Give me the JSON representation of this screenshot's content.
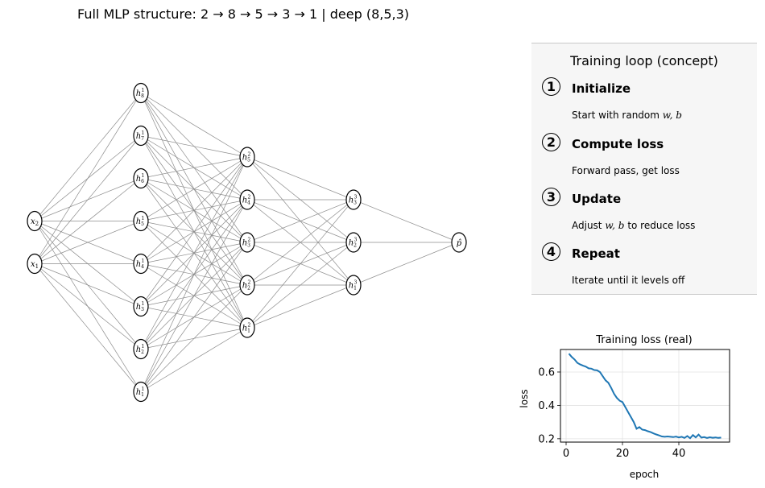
{
  "title": "Full MLP structure: 2 → 8 → 5 → 3 → 1 | deep (8,5,3)",
  "network": {
    "layer_sizes": [
      2,
      8,
      5,
      3,
      1
    ],
    "input_labels": [
      "x",
      "x"
    ],
    "input_subscripts": [
      "2",
      "1"
    ],
    "edge_color": "#8c8c8c",
    "node_stroke": "#000000",
    "node_fill": "#ffffff"
  },
  "panel": {
    "title": "Training loop (concept)",
    "background": "#f6f6f6",
    "steps": [
      {
        "num": "1",
        "title": "Initialize",
        "desc_pre": "Start with random ",
        "desc_vars": "w, b",
        "desc_post": ""
      },
      {
        "num": "2",
        "title": "Compute loss",
        "desc_pre": "Forward pass, get loss",
        "desc_vars": "",
        "desc_post": ""
      },
      {
        "num": "3",
        "title": "Update",
        "desc_pre": "Adjust ",
        "desc_vars": "w, b",
        "desc_post": " to reduce loss"
      },
      {
        "num": "4",
        "title": "Repeat",
        "desc_pre": "Iterate until it levels off",
        "desc_vars": "",
        "desc_post": ""
      }
    ]
  },
  "chart_data": {
    "type": "line",
    "title": "Training loss (real)",
    "xlabel": "epoch",
    "ylabel": "loss",
    "xlim": [
      -2,
      58
    ],
    "ylim": [
      0.18,
      0.735
    ],
    "xticks": [
      0,
      20,
      40
    ],
    "yticks": [
      0.2,
      0.4,
      0.6
    ],
    "ytick_labels": [
      "0.2",
      "0.4",
      "0.6"
    ],
    "grid": true,
    "line_color": "#1f77b4",
    "series": [
      {
        "x": [
          1,
          2,
          3,
          4,
          5,
          6,
          7,
          8,
          9,
          10,
          11,
          12,
          13,
          14,
          15,
          16,
          17,
          18,
          19,
          20,
          21,
          22,
          23,
          24,
          25,
          26,
          27,
          28,
          29,
          30,
          31,
          32,
          33,
          34,
          35,
          36,
          37,
          38,
          39,
          40,
          41,
          42,
          43,
          44,
          45,
          46,
          47,
          48,
          49,
          50,
          51,
          52,
          53,
          54,
          55
        ],
        "values": [
          0.71,
          0.69,
          0.675,
          0.655,
          0.645,
          0.638,
          0.632,
          0.622,
          0.62,
          0.612,
          0.61,
          0.6,
          0.575,
          0.55,
          0.535,
          0.505,
          0.47,
          0.445,
          0.428,
          0.42,
          0.39,
          0.36,
          0.33,
          0.3,
          0.26,
          0.27,
          0.255,
          0.252,
          0.245,
          0.24,
          0.232,
          0.226,
          0.22,
          0.214,
          0.212,
          0.214,
          0.212,
          0.21,
          0.213,
          0.208,
          0.212,
          0.205,
          0.216,
          0.203,
          0.222,
          0.208,
          0.225,
          0.207,
          0.21,
          0.205,
          0.209,
          0.206,
          0.208,
          0.205,
          0.207
        ]
      }
    ]
  }
}
